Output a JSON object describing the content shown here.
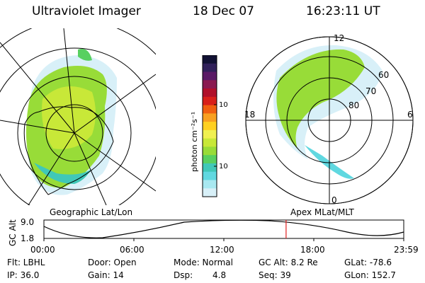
{
  "header": {
    "instrument": "Ultraviolet Imager",
    "date": "18 Dec 07",
    "time": "16:23:11 UT"
  },
  "colorbar": {
    "unit_label": "photon cm⁻²s⁻¹",
    "ticks": [
      "100",
      "10"
    ],
    "colors": [
      "#111133",
      "#30205a",
      "#5a1a66",
      "#8a1a50",
      "#b0102a",
      "#d8201a",
      "#f06010",
      "#f8a020",
      "#ffd020",
      "#f0f050",
      "#c8e838",
      "#98dc38",
      "#58d060",
      "#40c8b8",
      "#60d8e0",
      "#a8e8f0",
      "#d8f0f8"
    ]
  },
  "left_map": {
    "caption": "Geographic Lat/Lon"
  },
  "right_map": {
    "caption": "Apex MLat/MLT",
    "mlt_labels": {
      "top": "12",
      "left": "18",
      "right": "6",
      "bottom": "0"
    },
    "lat_labels": [
      "60",
      "70",
      "80"
    ]
  },
  "orbit": {
    "ylabel": "GC Alt",
    "yticks": [
      "9.0",
      "1.8"
    ],
    "xticks": [
      "00:00",
      "06:00",
      "12:00",
      "18:00",
      "23:59"
    ],
    "marker_color": "#e02020",
    "current_time_fraction": 0.673
  },
  "status": {
    "flt": "Flt: LBHL",
    "ip": "IP: 36.0",
    "door": "Door: Open",
    "gain": "Gain: 14",
    "mode": "Mode: Normal",
    "dsp_label": "Dsp:",
    "dsp_value": "4.8",
    "gc_alt": "GC Alt: 8.2 Re",
    "seq": "Seq: 39",
    "glat": "GLat:  -78.6",
    "glon": "GLon: 152.7"
  }
}
